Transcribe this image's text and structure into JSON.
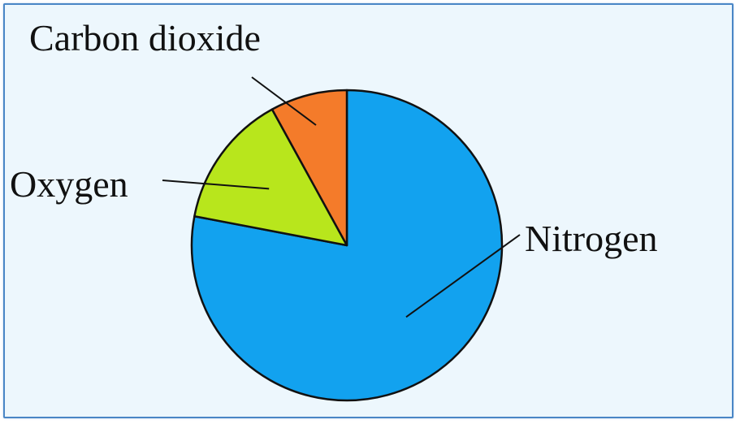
{
  "chart_data": {
    "type": "pie",
    "labels": [
      "Nitrogen",
      "Oxygen",
      "Carbon dioxide"
    ],
    "values": [
      78,
      14,
      8
    ],
    "colors": [
      "#12a2ef",
      "#b8e61c",
      "#f47b2a"
    ],
    "title": "",
    "legend": "none (slices labeled with leader lines)",
    "start_angle": "12 o'clock, clockwise"
  }
}
